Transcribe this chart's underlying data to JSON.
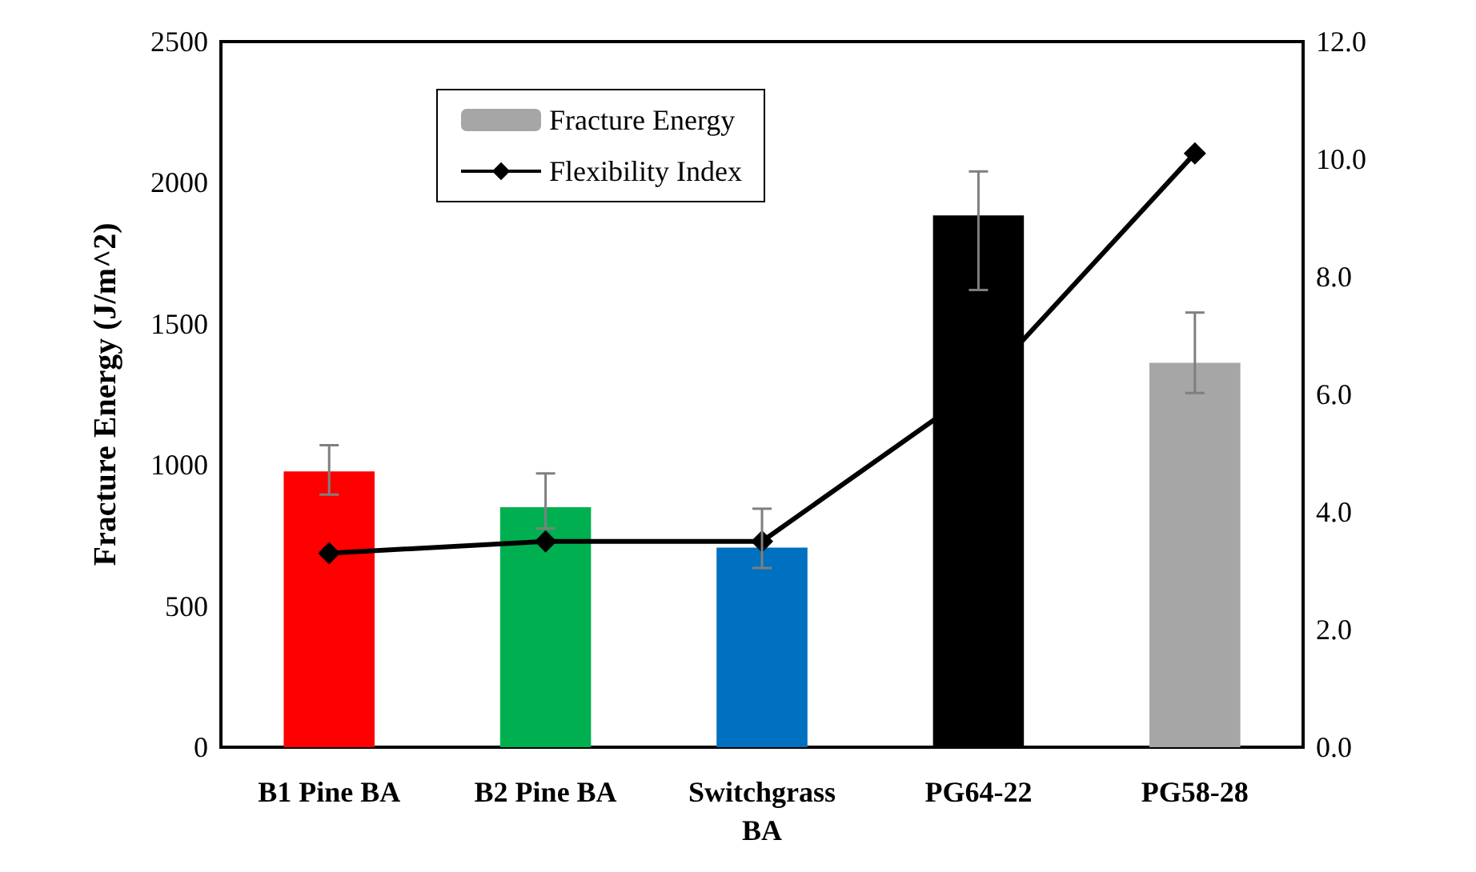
{
  "chart_data": {
    "type": "bar",
    "ylabel": "Fracture Energy (J/m^2)",
    "categories": [
      "B1 Pine BA",
      "B2 Pine BA",
      "Switchgrass\nBA",
      "PG64-22",
      "PG58-28"
    ],
    "series": [
      {
        "name": "Fracture Energy",
        "color": "#a6a6a6",
        "colors": [
          "#ff0000",
          "#00b050",
          "#0070c0",
          "#000000",
          "#a6a6a6"
        ],
        "values": [
          977,
          850,
          707,
          1884,
          1362
        ],
        "errors": [
          [
            895,
            1070
          ],
          [
            775,
            970
          ],
          [
            635,
            845
          ],
          [
            1620,
            2040
          ],
          [
            1255,
            1540
          ]
        ]
      },
      {
        "name": "Flexibility Index",
        "type": "line",
        "axis": "y2",
        "color": "#000000",
        "values": [
          3.3,
          3.5,
          3.5,
          6.1,
          10.1
        ]
      }
    ],
    "ylim": [
      0,
      2500
    ],
    "yticks": [
      0,
      500,
      1000,
      1500,
      2000,
      2500
    ],
    "y2lim": [
      0,
      12
    ],
    "y2ticks": [
      {
        "value": 0,
        "label": "0.0"
      },
      {
        "value": 2,
        "label": "2.0"
      },
      {
        "value": 4,
        "label": "4.0"
      },
      {
        "value": 6,
        "label": "6.0"
      },
      {
        "value": 8,
        "label": "8.0"
      },
      {
        "value": 10,
        "label": "10.0"
      },
      {
        "value": 12,
        "label": "12.0"
      }
    ],
    "legend": "top",
    "marker": "diamond",
    "grid": false
  }
}
